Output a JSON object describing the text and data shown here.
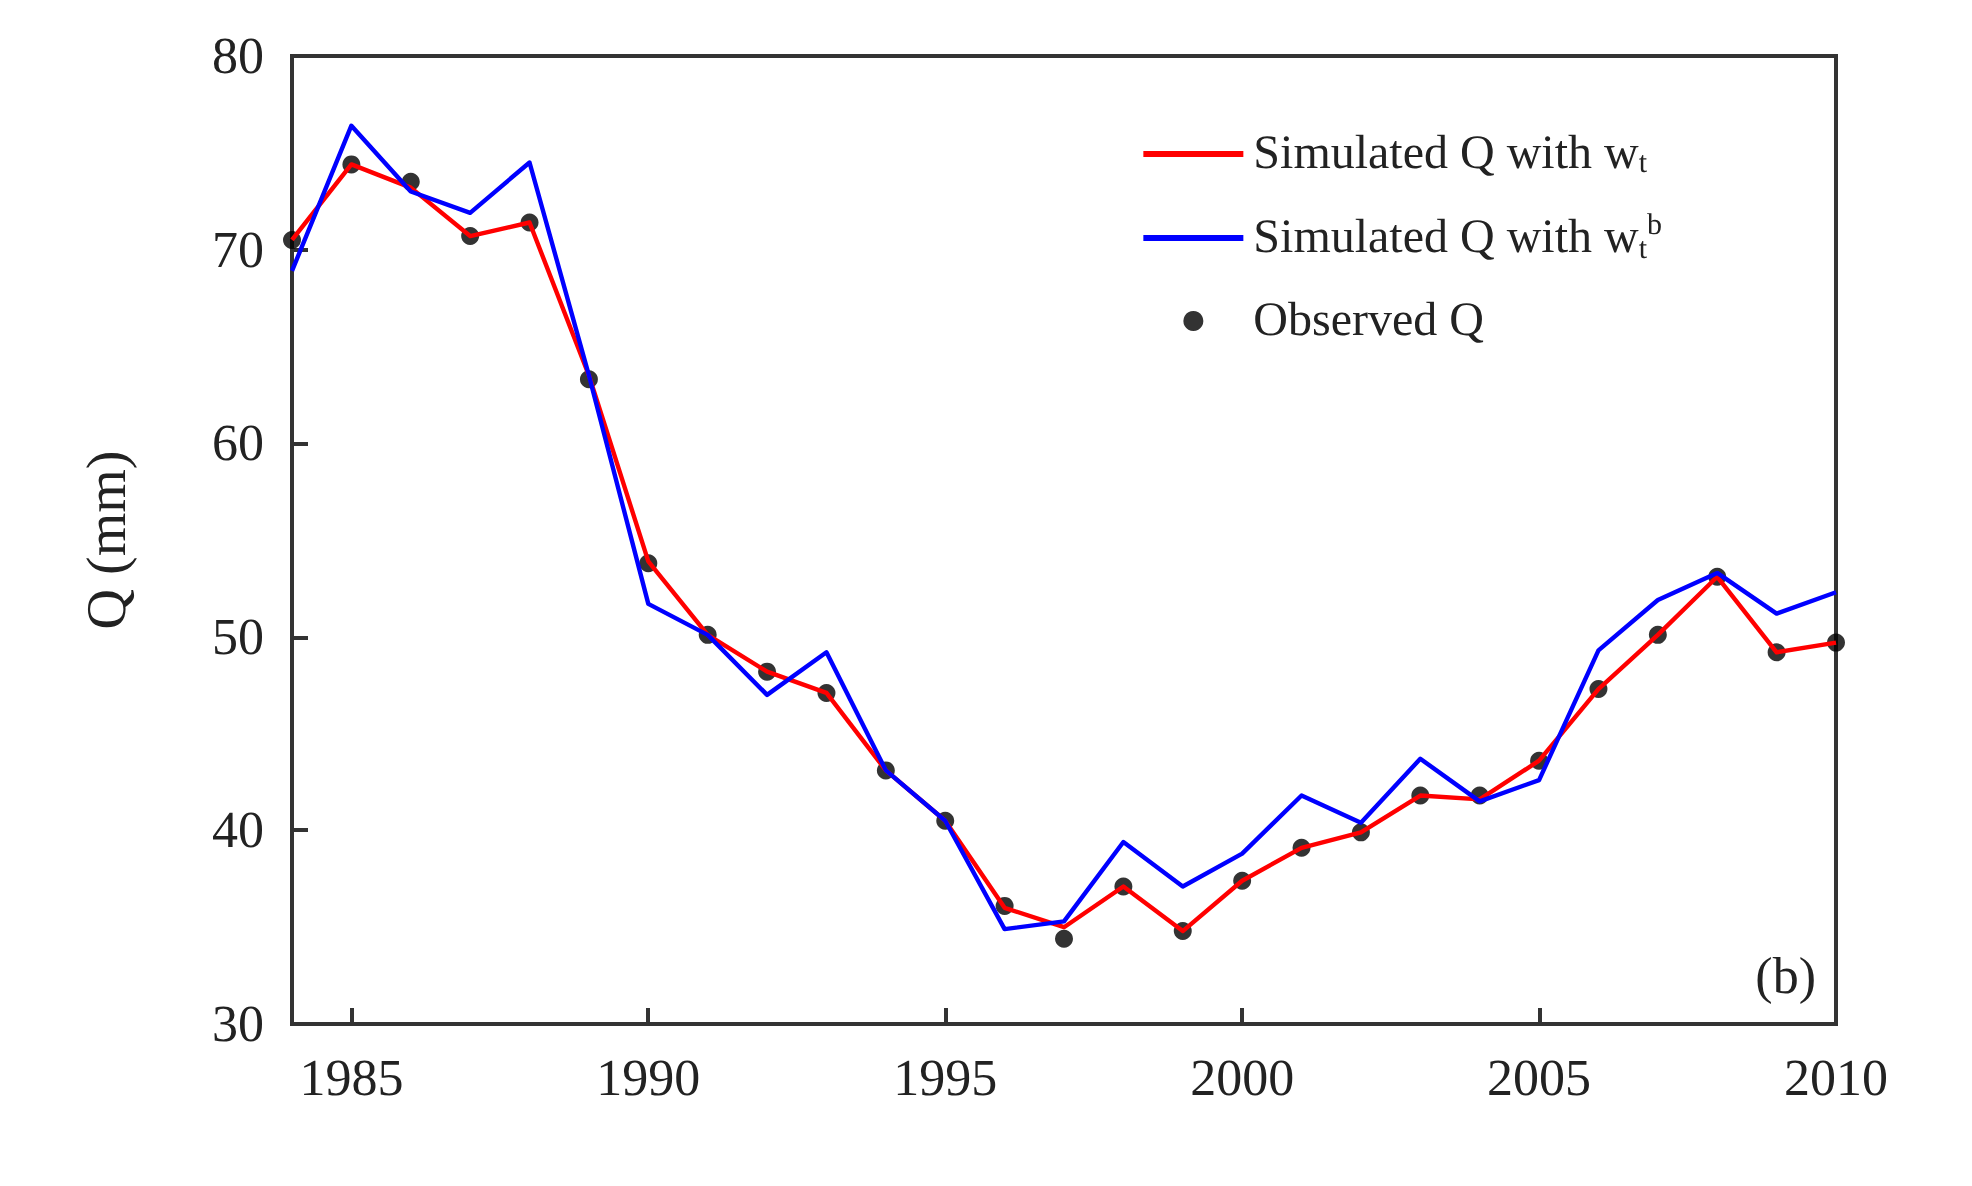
{
  "chart_data": {
    "type": "line",
    "ylabel": "Q (mm)",
    "x": [
      1984,
      1985,
      1986,
      1987,
      1988,
      1989,
      1990,
      1991,
      1992,
      1993,
      1994,
      1995,
      1996,
      1997,
      1998,
      1999,
      2000,
      2001,
      2002,
      2003,
      2004,
      2005,
      2006,
      2007,
      2008,
      2009,
      2010
    ],
    "series": [
      {
        "name": "Simulated Q with w$_{t}$",
        "color": "#ff0000",
        "values": [
          70.5,
          74.4,
          73.2,
          70.7,
          71.4,
          63.5,
          53.9,
          50.1,
          48.2,
          47.1,
          43.1,
          40.5,
          36.0,
          35.0,
          37.1,
          34.8,
          37.4,
          39.1,
          39.9,
          41.8,
          41.6,
          43.6,
          47.3,
          50.1,
          53.1,
          49.2,
          49.7
        ]
      },
      {
        "name": "Simulated Q with w$_{t}$$^{b}$",
        "color": "#0000ff",
        "values": [
          68.9,
          76.4,
          73.0,
          71.9,
          74.5,
          63.5,
          51.7,
          50.1,
          47.0,
          49.2,
          43.1,
          40.5,
          34.9,
          35.3,
          39.4,
          37.1,
          38.8,
          41.8,
          40.4,
          43.7,
          41.5,
          42.6,
          49.3,
          51.9,
          53.3,
          51.2,
          52.3
        ]
      },
      {
        "name": "Observed Q",
        "type": "scatter",
        "marker": "circle",
        "color": "#000000",
        "values": [
          70.5,
          74.4,
          73.5,
          70.7,
          71.4,
          63.3,
          53.8,
          50.1,
          48.2,
          47.1,
          43.1,
          40.5,
          36.1,
          34.4,
          37.1,
          34.8,
          37.4,
          39.1,
          39.9,
          41.8,
          41.8,
          43.6,
          47.3,
          50.1,
          53.1,
          49.2,
          49.7
        ]
      }
    ],
    "xlim": [
      1984,
      2010
    ],
    "xticks": [
      1985,
      1990,
      1995,
      2000,
      2005,
      2010
    ],
    "ylim": [
      30,
      80
    ],
    "yticks": [
      30,
      40,
      50,
      60,
      70,
      80
    ],
    "grid": false,
    "legend": "top right",
    "marker": "none",
    "line_style": "solid",
    "annotations": [
      "(b)"
    ]
  }
}
